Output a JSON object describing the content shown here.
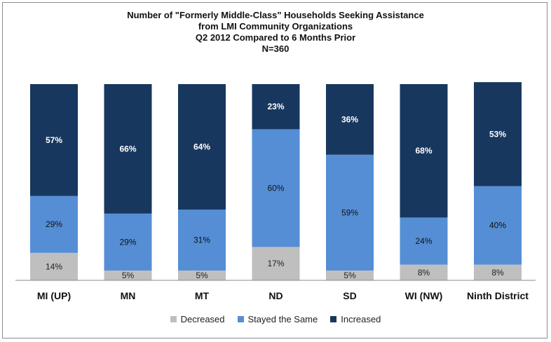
{
  "chart_data": {
    "type": "bar",
    "stacked": true,
    "title": [
      "Number of \"Formerly Middle-Class\" Households Seeking Assistance",
      "from LMI Community Organizations",
      "Q2 2012 Compared to 6 Months Prior",
      "N=360"
    ],
    "categories": [
      "MI (UP)",
      "MN",
      "MT",
      "ND",
      "SD",
      "WI (NW)",
      "Ninth District"
    ],
    "series": [
      {
        "name": "Decreased",
        "values": [
          14,
          5,
          5,
          17,
          5,
          8,
          8
        ],
        "labels": [
          "14%",
          "5%",
          "5%",
          "17%",
          "5%",
          "8%",
          "8%"
        ],
        "color": "#bfbfbf"
      },
      {
        "name": "Stayed the Same",
        "values": [
          29,
          29,
          31,
          60,
          59,
          24,
          40
        ],
        "labels": [
          "29%",
          "29%",
          "31%",
          "60%",
          "59%",
          "24%",
          "40%"
        ],
        "color": "#558ed5"
      },
      {
        "name": "Increased",
        "values": [
          57,
          66,
          64,
          23,
          36,
          68,
          53
        ],
        "labels": [
          "57%",
          "66%",
          "64%",
          "23%",
          "36%",
          "68%",
          "53%"
        ],
        "color": "#17375e"
      }
    ],
    "ylim": [
      0,
      100
    ],
    "grid": false,
    "legend_position": "bottom"
  }
}
